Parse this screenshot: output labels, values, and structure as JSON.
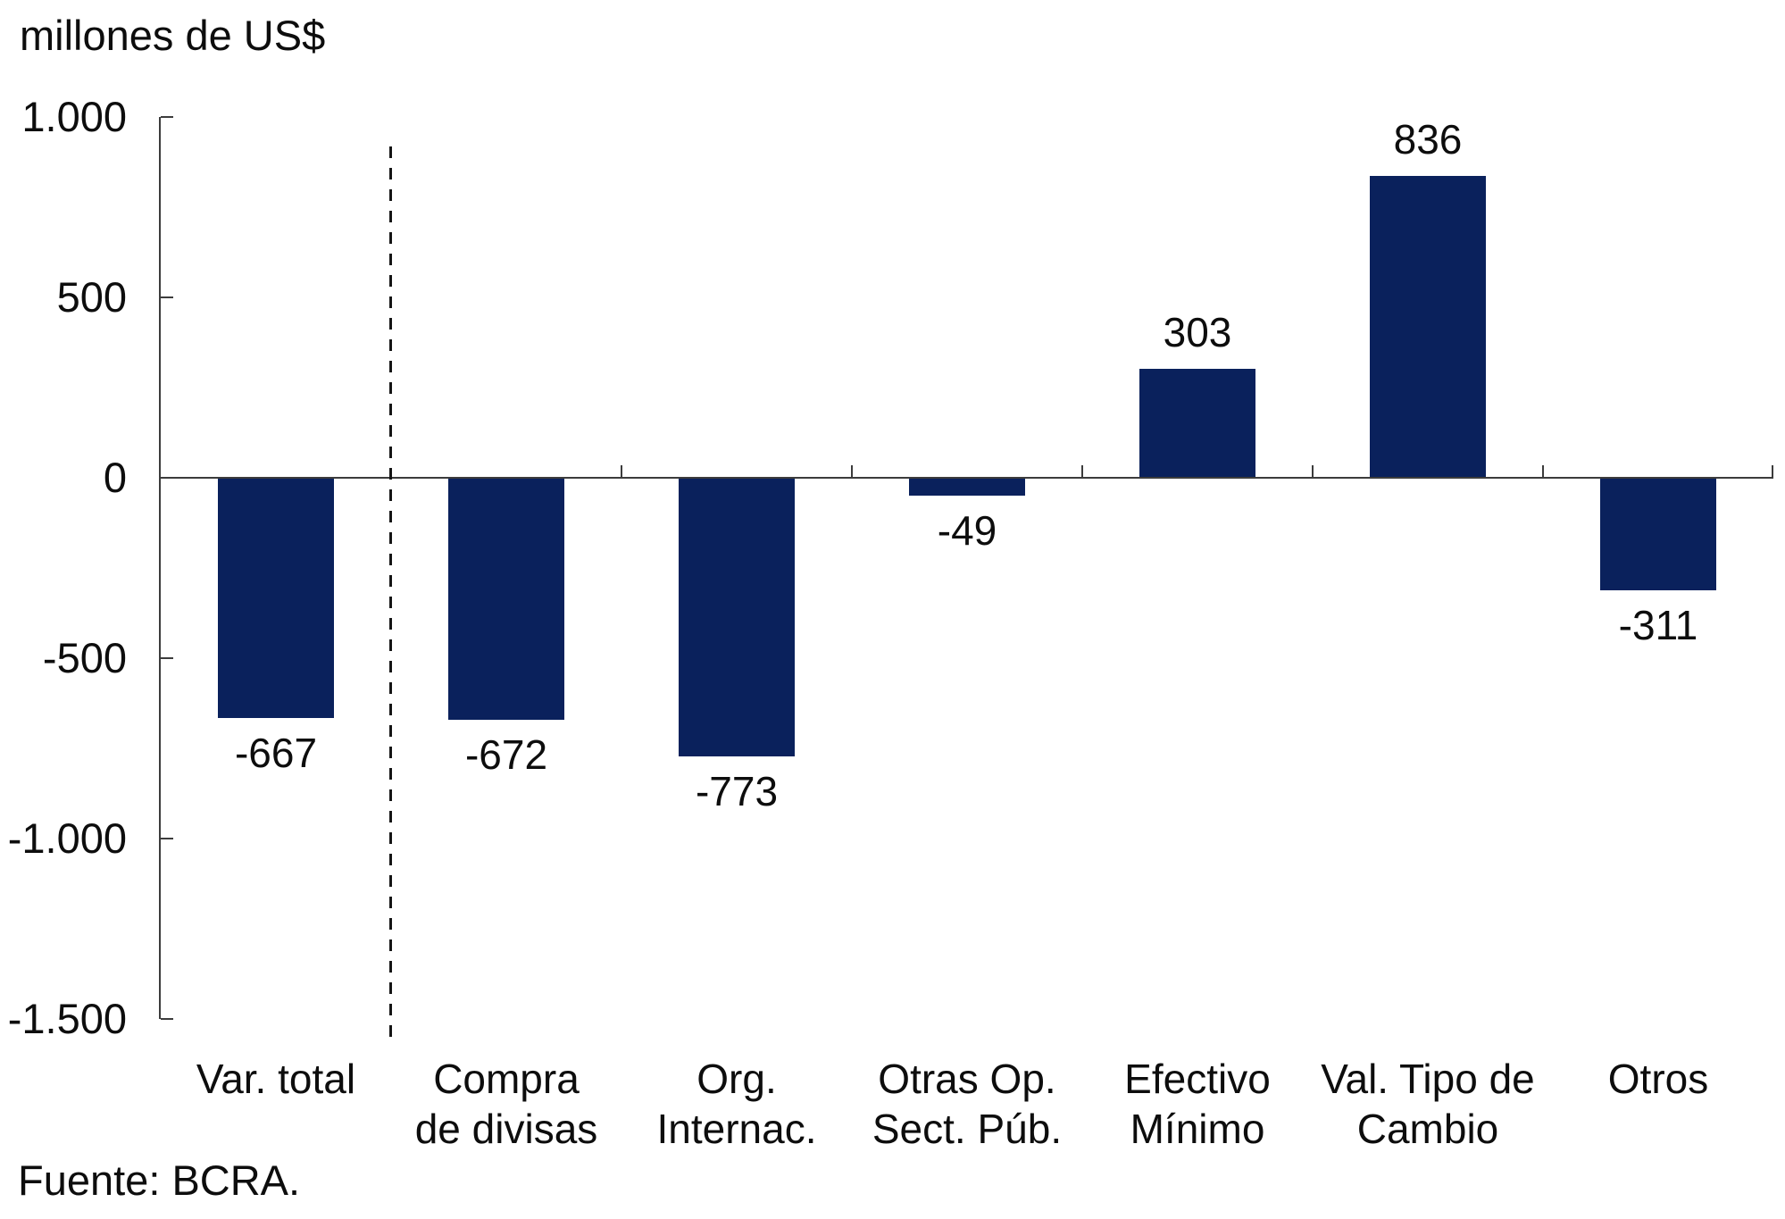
{
  "chart_data": {
    "type": "bar",
    "title": "millones de US$",
    "source": "Fuente: BCRA.",
    "categories": [
      "Var. total",
      "Compra de divisas",
      "Org. Internac.",
      "Otras Op. Sect. Púb.",
      "Efectivo Mínimo",
      "Val. Tipo de Cambio",
      "Otros"
    ],
    "category_lines": [
      [
        "Var. total"
      ],
      [
        "Compra",
        "de divisas"
      ],
      [
        "Org.",
        "Internac."
      ],
      [
        "Otras Op.",
        "Sect. Púb."
      ],
      [
        "Efectivo",
        "Mínimo"
      ],
      [
        "Val. Tipo de",
        "Cambio"
      ],
      [
        "Otros"
      ]
    ],
    "values": [
      -667,
      -672,
      -773,
      -49,
      303,
      836,
      -311
    ],
    "value_labels": [
      "-667",
      "-672",
      "-773",
      "-49",
      "303",
      "836",
      "-311"
    ],
    "ylim": [
      -1500,
      1000
    ],
    "ytick_step": 500,
    "yticks": [
      {
        "value": 1000,
        "label": "1.000"
      },
      {
        "value": 500,
        "label": "500"
      },
      {
        "value": 0,
        "label": "0"
      },
      {
        "value": -500,
        "label": "-500"
      },
      {
        "value": -1000,
        "label": "-1.000"
      },
      {
        "value": -1500,
        "label": "-1.500"
      }
    ],
    "separator_after_index": 0,
    "grid": false,
    "legend_position": "none",
    "colors": {
      "bar": "#0A215C",
      "axis": "#3C3C3C",
      "text": "#0D0D0D",
      "separator": "#151515"
    }
  }
}
